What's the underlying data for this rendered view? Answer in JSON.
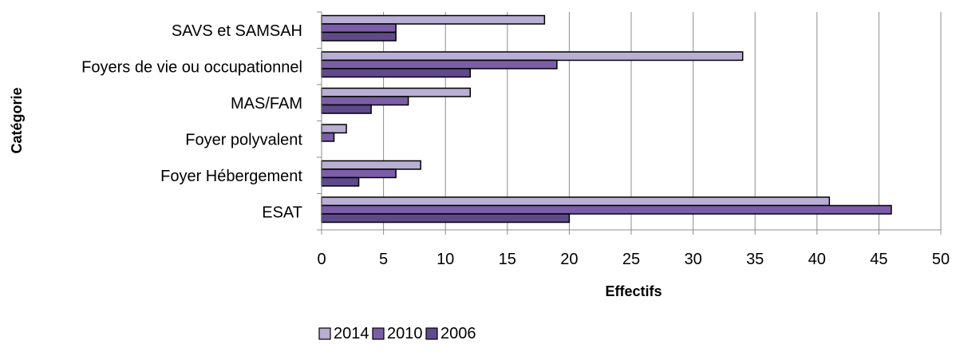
{
  "chart_data": {
    "type": "bar",
    "orientation": "horizontal",
    "title": "",
    "xlabel": "Effectifs",
    "ylabel": "Catégorie",
    "xlim": [
      0,
      50
    ],
    "xticks": [
      0,
      5,
      10,
      15,
      20,
      25,
      30,
      35,
      40,
      45,
      50
    ],
    "grid": true,
    "legend_position": "bottom",
    "categories": [
      "SAVS et SAMSAH",
      "Foyers de vie ou occupationnel",
      "MAS/FAM",
      "Foyer polyvalent",
      "Foyer Hébergement",
      "ESAT"
    ],
    "series": [
      {
        "name": "2014",
        "color": "#b9aed3",
        "values": [
          18,
          34,
          12,
          2,
          8,
          41
        ]
      },
      {
        "name": "2010",
        "color": "#7b5ea7",
        "values": [
          6,
          19,
          7,
          1,
          6,
          46
        ]
      },
      {
        "name": "2006",
        "color": "#5f4a8b",
        "values": [
          6,
          12,
          4,
          0,
          3,
          20
        ]
      }
    ]
  }
}
